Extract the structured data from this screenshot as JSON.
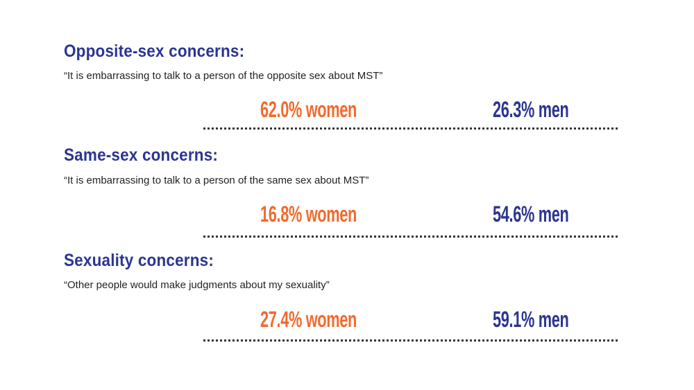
{
  "colors": {
    "heading": "#2b3590",
    "women": "#f26a2e",
    "men": "#2b3590"
  },
  "sections": [
    {
      "heading": "Opposite-sex concerns:",
      "quote": "“It is embarrassing to talk to a person of the opposite sex about MST”",
      "women": "62.0% women",
      "men": "26.3% men"
    },
    {
      "heading": "Same-sex concerns:",
      "quote": "“It is embarrassing to talk to a person of the same sex about MST”",
      "women": "16.8% women",
      "men": "54.6% men"
    },
    {
      "heading": "Sexuality concerns:",
      "quote": "“Other people would make judgments about my sexuality”",
      "women": "27.4% women",
      "men": "59.1% men"
    }
  ]
}
